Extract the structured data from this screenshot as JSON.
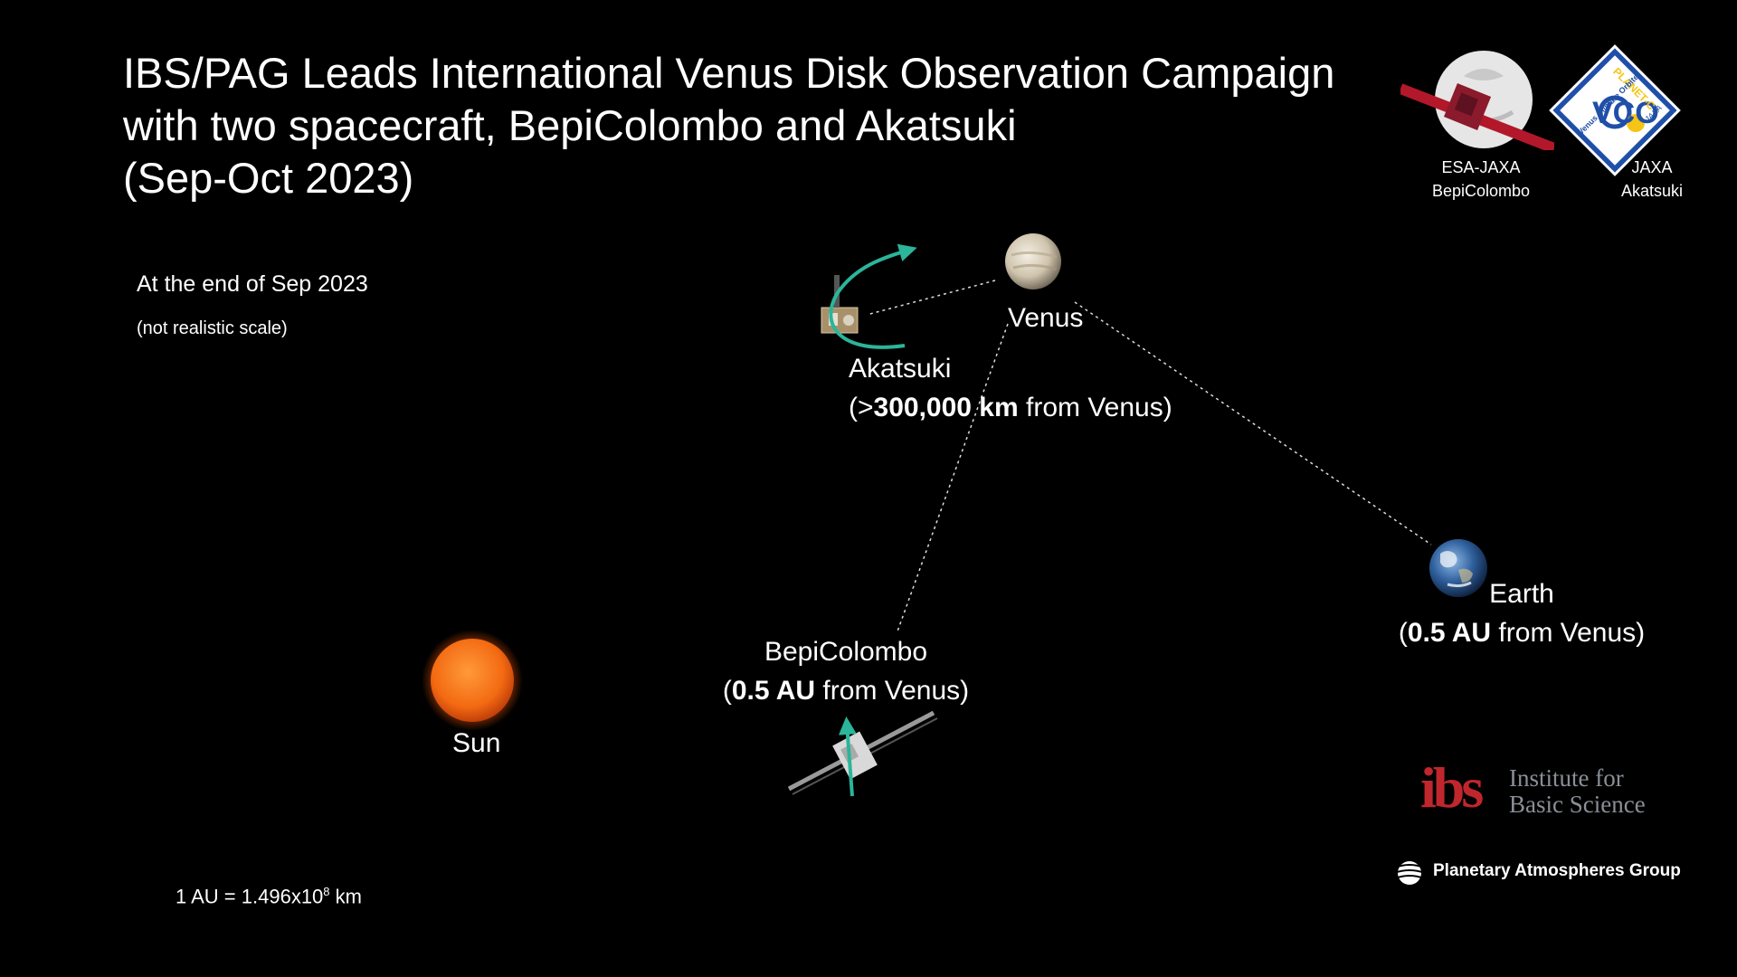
{
  "title": {
    "line1": "IBS/PAG Leads International Venus Disk Observation Campaign",
    "line2": "with two spacecraft, BepiColombo and Akatsuki",
    "line3": "(Sep-Oct 2023)"
  },
  "subtitle": {
    "date": "At the end of Sep 2023",
    "scale_note": "(not realistic scale)"
  },
  "bodies": {
    "venus": "Venus",
    "earth": {
      "name": "Earth",
      "open": "(",
      "distance": "0.5 AU",
      "rest": " from Venus)"
    },
    "sun": "Sun",
    "akatsuki": {
      "name": "Akatsuki",
      "open": "(>",
      "distance": "300,000 km",
      "rest": " from Venus)"
    },
    "bepicolombo": {
      "name": "BepiColombo",
      "open": "(",
      "distance": "0.5 AU",
      "rest": " from Venus)"
    }
  },
  "au_note": {
    "base": "1 AU = 1.496x10",
    "exp": "8",
    "unit": " km"
  },
  "logos": {
    "bepi": {
      "line1": "ESA-JAXA",
      "line2": "BepiColombo"
    },
    "akatsuki": {
      "line1": "JAXA",
      "line2": "Akatsuki",
      "badge_top": "PLANET-C",
      "badge_bottom": "Venus Climate Orbiter",
      "badge_mark": "VCO",
      "badge_jaxa": "JAXA"
    },
    "ibs": {
      "mark": "ibs",
      "line1": "Institute for",
      "line2": "Basic Science"
    },
    "pag": "Planetary Atmospheres Group"
  },
  "colors": {
    "arrow": "#2bb59a",
    "ibs_red": "#c0272d",
    "ibs_gray": "#8a8f96",
    "sun": "#f36a12",
    "badge_yellow": "#f6c414",
    "badge_blue": "#1f4fa8"
  }
}
